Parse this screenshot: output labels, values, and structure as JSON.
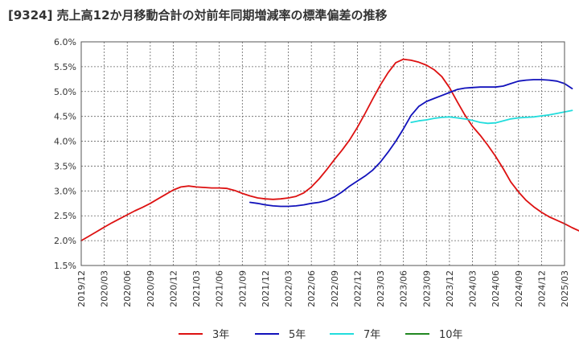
{
  "chart_data": {
    "type": "line",
    "title": "[9324]  売上高12か月移動合計の対前年同期増減率の標準偏差の推移",
    "xlabel": "",
    "ylabel": "",
    "ylim": [
      1.5,
      6.0
    ],
    "y_ticks": [
      "1.5%",
      "2.0%",
      "2.5%",
      "3.0%",
      "3.5%",
      "4.0%",
      "4.5%",
      "5.0%",
      "5.5%",
      "6.0%"
    ],
    "x_ticks": [
      "2019/12",
      "2020/03",
      "2020/06",
      "2020/09",
      "2020/12",
      "2021/03",
      "2021/06",
      "2021/09",
      "2021/12",
      "2022/03",
      "2022/06",
      "2022/09",
      "2022/12",
      "2023/03",
      "2023/06",
      "2023/09",
      "2023/12",
      "2024/03",
      "2024/06",
      "2024/09",
      "2024/12",
      "2025/03"
    ],
    "grid": true,
    "legend_position": "bottom",
    "series": [
      {
        "name": "3年",
        "color": "#dd1111",
        "points": [
          [
            "2019/12",
            2.0
          ],
          [
            "2020/01",
            2.09
          ],
          [
            "2020/02",
            2.18
          ],
          [
            "2020/03",
            2.27
          ],
          [
            "2020/04",
            2.36
          ],
          [
            "2020/05",
            2.44
          ],
          [
            "2020/06",
            2.52
          ],
          [
            "2020/07",
            2.6
          ],
          [
            "2020/08",
            2.67
          ],
          [
            "2020/09",
            2.75
          ],
          [
            "2020/10",
            2.84
          ],
          [
            "2020/11",
            2.93
          ],
          [
            "2020/12",
            3.02
          ],
          [
            "2021/01",
            3.08
          ],
          [
            "2021/02",
            3.1
          ],
          [
            "2021/03",
            3.08
          ],
          [
            "2021/04",
            3.07
          ],
          [
            "2021/05",
            3.06
          ],
          [
            "2021/06",
            3.06
          ],
          [
            "2021/07",
            3.05
          ],
          [
            "2021/08",
            3.01
          ],
          [
            "2021/09",
            2.95
          ],
          [
            "2021/10",
            2.9
          ],
          [
            "2021/11",
            2.86
          ],
          [
            "2021/12",
            2.84
          ],
          [
            "2022/01",
            2.83
          ],
          [
            "2022/02",
            2.84
          ],
          [
            "2022/03",
            2.86
          ],
          [
            "2022/04",
            2.89
          ],
          [
            "2022/05",
            2.96
          ],
          [
            "2022/06",
            3.08
          ],
          [
            "2022/07",
            3.24
          ],
          [
            "2022/08",
            3.43
          ],
          [
            "2022/09",
            3.63
          ],
          [
            "2022/10",
            3.82
          ],
          [
            "2022/11",
            4.03
          ],
          [
            "2022/12",
            4.28
          ],
          [
            "2023/01",
            4.56
          ],
          [
            "2023/02",
            4.85
          ],
          [
            "2023/03",
            5.13
          ],
          [
            "2023/04",
            5.38
          ],
          [
            "2023/05",
            5.58
          ],
          [
            "2023/06",
            5.65
          ],
          [
            "2023/07",
            5.63
          ],
          [
            "2023/08",
            5.59
          ],
          [
            "2023/09",
            5.53
          ],
          [
            "2023/10",
            5.44
          ],
          [
            "2023/11",
            5.3
          ],
          [
            "2023/12",
            5.08
          ],
          [
            "2024/01",
            4.8
          ],
          [
            "2024/02",
            4.53
          ],
          [
            "2024/03",
            4.3
          ],
          [
            "2024/04",
            4.12
          ],
          [
            "2024/05",
            3.92
          ],
          [
            "2024/06",
            3.7
          ],
          [
            "2024/07",
            3.45
          ],
          [
            "2024/08",
            3.18
          ],
          [
            "2024/09",
            2.98
          ],
          [
            "2024/10",
            2.81
          ],
          [
            "2024/11",
            2.68
          ],
          [
            "2024/12",
            2.57
          ],
          [
            "2025/01",
            2.48
          ],
          [
            "2025/02",
            2.41
          ],
          [
            "2025/03",
            2.34
          ],
          [
            "2025/04",
            2.26
          ],
          [
            "2025/05",
            2.19
          ]
        ]
      },
      {
        "name": "5年",
        "color": "#1111bb",
        "points": [
          [
            "2021/10",
            2.77
          ],
          [
            "2021/11",
            2.75
          ],
          [
            "2021/12",
            2.72
          ],
          [
            "2022/01",
            2.7
          ],
          [
            "2022/02",
            2.69
          ],
          [
            "2022/03",
            2.69
          ],
          [
            "2022/04",
            2.7
          ],
          [
            "2022/05",
            2.72
          ],
          [
            "2022/06",
            2.75
          ],
          [
            "2022/07",
            2.77
          ],
          [
            "2022/08",
            2.81
          ],
          [
            "2022/09",
            2.88
          ],
          [
            "2022/10",
            2.98
          ],
          [
            "2022/11",
            3.1
          ],
          [
            "2022/12",
            3.2
          ],
          [
            "2023/01",
            3.3
          ],
          [
            "2023/02",
            3.42
          ],
          [
            "2023/03",
            3.58
          ],
          [
            "2023/04",
            3.78
          ],
          [
            "2023/05",
            4.0
          ],
          [
            "2023/06",
            4.25
          ],
          [
            "2023/07",
            4.52
          ],
          [
            "2023/08",
            4.7
          ],
          [
            "2023/09",
            4.8
          ],
          [
            "2023/10",
            4.86
          ],
          [
            "2023/11",
            4.92
          ],
          [
            "2023/12",
            4.98
          ],
          [
            "2024/01",
            5.04
          ],
          [
            "2024/02",
            5.07
          ],
          [
            "2024/03",
            5.08
          ],
          [
            "2024/04",
            5.09
          ],
          [
            "2024/05",
            5.09
          ],
          [
            "2024/06",
            5.09
          ],
          [
            "2024/07",
            5.11
          ],
          [
            "2024/08",
            5.16
          ],
          [
            "2024/09",
            5.21
          ],
          [
            "2024/10",
            5.23
          ],
          [
            "2024/11",
            5.24
          ],
          [
            "2024/12",
            5.24
          ],
          [
            "2025/01",
            5.23
          ],
          [
            "2025/02",
            5.21
          ],
          [
            "2025/03",
            5.16
          ],
          [
            "2025/04",
            5.06
          ]
        ]
      },
      {
        "name": "7年",
        "color": "#22dddd",
        "points": [
          [
            "2023/07",
            4.38
          ],
          [
            "2023/08",
            4.41
          ],
          [
            "2023/09",
            4.43
          ],
          [
            "2023/10",
            4.46
          ],
          [
            "2023/11",
            4.48
          ],
          [
            "2023/12",
            4.49
          ],
          [
            "2024/01",
            4.47
          ],
          [
            "2024/02",
            4.45
          ],
          [
            "2024/03",
            4.42
          ],
          [
            "2024/04",
            4.38
          ],
          [
            "2024/05",
            4.36
          ],
          [
            "2024/06",
            4.37
          ],
          [
            "2024/07",
            4.41
          ],
          [
            "2024/08",
            4.45
          ],
          [
            "2024/09",
            4.47
          ],
          [
            "2024/10",
            4.48
          ],
          [
            "2024/11",
            4.49
          ],
          [
            "2024/12",
            4.51
          ],
          [
            "2025/01",
            4.53
          ],
          [
            "2025/02",
            4.56
          ],
          [
            "2025/03",
            4.59
          ],
          [
            "2025/04",
            4.62
          ]
        ]
      },
      {
        "name": "10年",
        "color": "#228822",
        "points": []
      }
    ]
  }
}
